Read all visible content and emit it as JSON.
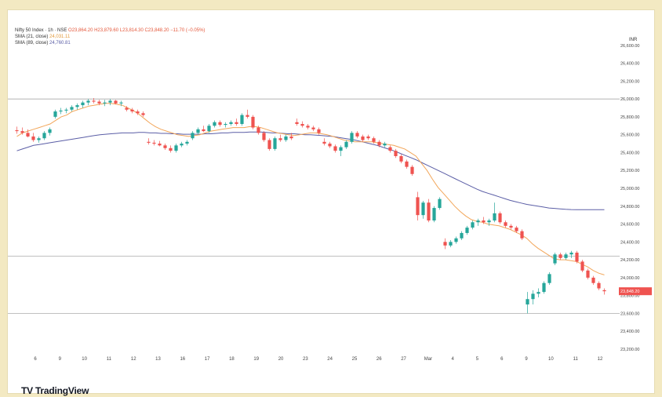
{
  "legend": {
    "symbol": "Nifty 50 Index · 1h · NSE",
    "ohlc": "O23,864.20 H23,879.60 L23,814.30 C23,848.20 −11.70 (−0.05%)",
    "sma21_label": "SMA (21, close)",
    "sma21_value": "24,031.11",
    "sma89_label": "SMA (89, close)",
    "sma89_value": "24,760.81"
  },
  "currency": "INR",
  "brand": {
    "name": "TradingView",
    "mark_icon": "tradingview-logo-icon"
  },
  "last_price_label": "23,848.20",
  "colors": {
    "up": "#26a69a",
    "down": "#ef5350",
    "sma21": "#f2a65a",
    "sma89": "#5b5ea6",
    "price_tag": "#ef5350",
    "background": "#f3e9c2"
  },
  "chart_data": {
    "type": "candlestick",
    "ylim": [
      23200,
      26800
    ],
    "y_ticks": [
      "26,600.00",
      "26,400.00",
      "26,200.00",
      "26,000.00",
      "25,800.00",
      "25,600.00",
      "25,400.00",
      "25,200.00",
      "25,000.00",
      "24,800.00",
      "24,600.00",
      "24,400.00",
      "24,200.00",
      "24,000.00",
      "23,800.00",
      "23,600.00",
      "23,400.00",
      "23,200.00"
    ],
    "x_ticks": [
      "6",
      "9",
      "10",
      "11",
      "12",
      "13",
      "16",
      "17",
      "18",
      "19",
      "20",
      "23",
      "24",
      "25",
      "26",
      "27",
      "Mar",
      "4",
      "5",
      "6",
      "9",
      "10",
      "11",
      "12"
    ],
    "horizontal_levels": [
      26000,
      24240,
      23600
    ],
    "candles": [
      [
        25650,
        25690,
        25610,
        25640
      ],
      [
        25640,
        25680,
        25600,
        25620
      ],
      [
        25620,
        25660,
        25570,
        25580
      ],
      [
        25580,
        25620,
        25520,
        25540
      ],
      [
        25540,
        25580,
        25510,
        25560
      ],
      [
        25560,
        25640,
        25540,
        25620
      ],
      [
        25620,
        25680,
        25590,
        25660
      ],
      [
        25800,
        25880,
        25780,
        25860
      ],
      [
        25860,
        25900,
        25830,
        25870
      ],
      [
        25870,
        25900,
        25840,
        25880
      ],
      [
        25880,
        25930,
        25860,
        25910
      ],
      [
        25910,
        25950,
        25880,
        25930
      ],
      [
        25930,
        25980,
        25900,
        25960
      ],
      [
        25960,
        26000,
        25930,
        25980
      ],
      [
        25980,
        26010,
        25950,
        25970
      ],
      [
        25970,
        25990,
        25930,
        25950
      ],
      [
        25950,
        25990,
        25920,
        25960
      ],
      [
        25960,
        26000,
        25930,
        25980
      ],
      [
        25980,
        25990,
        25940,
        25950
      ],
      [
        25950,
        25980,
        25920,
        25960
      ],
      [
        25900,
        25920,
        25860,
        25880
      ],
      [
        25880,
        25900,
        25840,
        25860
      ],
      [
        25860,
        25880,
        25820,
        25840
      ],
      [
        25840,
        25860,
        25800,
        25820
      ],
      [
        25520,
        25560,
        25490,
        25510
      ],
      [
        25510,
        25540,
        25480,
        25500
      ],
      [
        25500,
        25530,
        25470,
        25480
      ],
      [
        25480,
        25500,
        25430,
        25450
      ],
      [
        25450,
        25480,
        25400,
        25420
      ],
      [
        25420,
        25500,
        25400,
        25480
      ],
      [
        25480,
        25520,
        25460,
        25500
      ],
      [
        25500,
        25540,
        25480,
        25520
      ],
      [
        25560,
        25640,
        25540,
        25620
      ],
      [
        25620,
        25680,
        25600,
        25660
      ],
      [
        25660,
        25700,
        25630,
        25640
      ],
      [
        25640,
        25720,
        25620,
        25700
      ],
      [
        25700,
        25760,
        25680,
        25740
      ],
      [
        25740,
        25760,
        25690,
        25710
      ],
      [
        25710,
        25740,
        25680,
        25720
      ],
      [
        25720,
        25760,
        25700,
        25740
      ],
      [
        25740,
        25780,
        25700,
        25720
      ],
      [
        25720,
        25840,
        25700,
        25820
      ],
      [
        25820,
        25880,
        25780,
        25800
      ],
      [
        25800,
        25820,
        25660,
        25680
      ],
      [
        25680,
        25700,
        25600,
        25620
      ],
      [
        25620,
        25640,
        25520,
        25540
      ],
      [
        25540,
        25560,
        25420,
        25440
      ],
      [
        25440,
        25580,
        25420,
        25560
      ],
      [
        25560,
        25600,
        25520,
        25540
      ],
      [
        25540,
        25600,
        25520,
        25580
      ],
      [
        25580,
        25620,
        25540,
        25560
      ],
      [
        25740,
        25780,
        25700,
        25720
      ],
      [
        25720,
        25750,
        25680,
        25700
      ],
      [
        25700,
        25720,
        25660,
        25680
      ],
      [
        25680,
        25700,
        25640,
        25660
      ],
      [
        25660,
        25680,
        25600,
        25620
      ],
      [
        25520,
        25560,
        25480,
        25500
      ],
      [
        25500,
        25520,
        25450,
        25470
      ],
      [
        25470,
        25490,
        25400,
        25420
      ],
      [
        25420,
        25480,
        25360,
        25460
      ],
      [
        25460,
        25540,
        25440,
        25520
      ],
      [
        25520,
        25640,
        25500,
        25620
      ],
      [
        25620,
        25640,
        25560,
        25580
      ],
      [
        25580,
        25600,
        25520,
        25540
      ],
      [
        25580,
        25600,
        25540,
        25560
      ],
      [
        25560,
        25580,
        25500,
        25520
      ],
      [
        25520,
        25540,
        25460,
        25480
      ],
      [
        25480,
        25520,
        25460,
        25500
      ],
      [
        25460,
        25480,
        25400,
        25420
      ],
      [
        25420,
        25440,
        25340,
        25360
      ],
      [
        25360,
        25380,
        25280,
        25300
      ],
      [
        25300,
        25320,
        25220,
        25240
      ],
      [
        25240,
        25260,
        25140,
        25160
      ],
      [
        24900,
        24960,
        24640,
        24700
      ],
      [
        24700,
        24860,
        24660,
        24840
      ],
      [
        24840,
        24880,
        24620,
        24640
      ],
      [
        24640,
        24800,
        24620,
        24780
      ],
      [
        24780,
        24900,
        24760,
        24880
      ],
      [
        24400,
        24440,
        24320,
        24360
      ],
      [
        24360,
        24420,
        24340,
        24400
      ],
      [
        24400,
        24460,
        24380,
        24440
      ],
      [
        24440,
        24520,
        24420,
        24500
      ],
      [
        24500,
        24580,
        24480,
        24560
      ],
      [
        24560,
        24640,
        24540,
        24620
      ],
      [
        24620,
        24660,
        24580,
        24640
      ],
      [
        24640,
        24680,
        24600,
        24620
      ],
      [
        24620,
        24660,
        24580,
        24640
      ],
      [
        24640,
        24840,
        24620,
        24720
      ],
      [
        24720,
        24740,
        24600,
        24620
      ],
      [
        24620,
        24640,
        24560,
        24580
      ],
      [
        24580,
        24600,
        24540,
        24560
      ],
      [
        24560,
        24580,
        24500,
        24520
      ],
      [
        24520,
        24540,
        24420,
        24440
      ],
      [
        23700,
        23840,
        23600,
        23760
      ],
      [
        23760,
        23860,
        23700,
        23820
      ],
      [
        23820,
        23880,
        23780,
        23840
      ],
      [
        23840,
        23960,
        23820,
        23940
      ],
      [
        23940,
        24060,
        23920,
        24040
      ],
      [
        24160,
        24280,
        24140,
        24260
      ],
      [
        24260,
        24280,
        24200,
        24220
      ],
      [
        24220,
        24280,
        24200,
        24260
      ],
      [
        24260,
        24300,
        24220,
        24280
      ],
      [
        24280,
        24300,
        24160,
        24180
      ],
      [
        24180,
        24200,
        24060,
        24080
      ],
      [
        24080,
        24100,
        23980,
        24000
      ],
      [
        24000,
        24020,
        23920,
        23940
      ],
      [
        23940,
        23960,
        23860,
        23880
      ],
      [
        23860,
        23880,
        23810,
        23848
      ]
    ],
    "series": [
      {
        "name": "SMA (21, close)",
        "values": [
          25580,
          25620,
          25640,
          25660,
          25680,
          25700,
          25720,
          25760,
          25800,
          25820,
          25860,
          25880,
          25900,
          25920,
          25930,
          25940,
          25950,
          25950,
          25940,
          25930,
          25900,
          25870,
          25830,
          25780,
          25730,
          25690,
          25660,
          25640,
          25620,
          25600,
          25590,
          25580,
          25590,
          25600,
          25620,
          25640,
          25650,
          25660,
          25670,
          25680,
          25680,
          25680,
          25690,
          25690,
          25680,
          25660,
          25640,
          25620,
          25610,
          25600,
          25590,
          25600,
          25610,
          25620,
          25620,
          25610,
          25600,
          25580,
          25560,
          25540,
          25530,
          25520,
          25520,
          25520,
          25520,
          25510,
          25500,
          25490,
          25480,
          25460,
          25440,
          25400,
          25360,
          25280,
          25200,
          25100,
          25010,
          24940,
          24870,
          24800,
          24740,
          24690,
          24650,
          24630,
          24620,
          24600,
          24590,
          24580,
          24560,
          24540,
          24510,
          24480,
          24440,
          24380,
          24330,
          24290,
          24250,
          24210,
          24200,
          24200,
          24190,
          24180,
          24150,
          24120,
          24080,
          24050,
          24031
        ]
      },
      {
        "name": "SMA (89, close)",
        "values": [
          25420,
          25440,
          25460,
          25480,
          25490,
          25500,
          25510,
          25520,
          25530,
          25540,
          25550,
          25560,
          25570,
          25580,
          25590,
          25600,
          25605,
          25610,
          25615,
          25620,
          25620,
          25620,
          25625,
          25625,
          25620,
          25620,
          25615,
          25615,
          25610,
          25610,
          25605,
          25605,
          25605,
          25605,
          25610,
          25610,
          25615,
          25620,
          25620,
          25625,
          25625,
          25625,
          25630,
          25630,
          25630,
          25625,
          25620,
          25620,
          25615,
          25610,
          25610,
          25605,
          25600,
          25600,
          25595,
          25590,
          25585,
          25580,
          25570,
          25560,
          25550,
          25540,
          25525,
          25510,
          25495,
          25480,
          25460,
          25440,
          25420,
          25395,
          25370,
          25345,
          25320,
          25290,
          25260,
          25230,
          25200,
          25170,
          25140,
          25110,
          25080,
          25050,
          25020,
          24990,
          24965,
          24945,
          24925,
          24905,
          24885,
          24865,
          24850,
          24835,
          24820,
          24810,
          24800,
          24790,
          24780,
          24775,
          24770,
          24765,
          24762,
          24761,
          24760,
          24760,
          24760,
          24760,
          24760
        ]
      }
    ]
  }
}
